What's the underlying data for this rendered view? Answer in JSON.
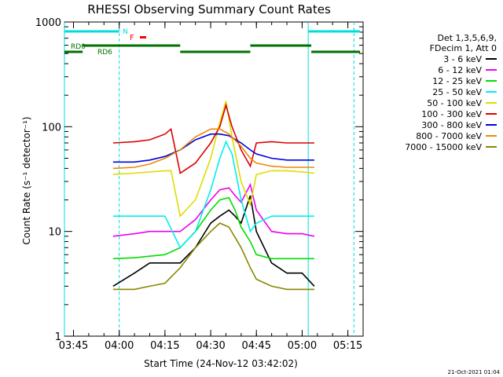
{
  "chart_data": {
    "type": "line",
    "title": "RHESSI Observing Summary Count Rates",
    "xlabel": "Start Time (24-Nov-12 03:42:02)",
    "ylabel": "Count Rate (s⁻¹ detector⁻¹)",
    "ylim": [
      1,
      1000
    ],
    "xlim": [
      "03:42:02",
      "05:20:00"
    ],
    "yscale": "log",
    "x_ticks": [
      "03:45",
      "04:00",
      "04:15",
      "04:30",
      "04:45",
      "05:00",
      "05:15"
    ],
    "y_ticks": [
      "1",
      "10",
      "100",
      "1000"
    ],
    "legend_header": [
      "Det 1,3,5,6,9,",
      "FDecim 1, Att 0"
    ],
    "legend_position": "right",
    "footer_date": "21-Oct-2021 01:04",
    "markers": {
      "N": "N",
      "F": "F",
      "RD0": "RD0",
      "RD6": "RD6"
    },
    "series": [
      {
        "name": "3 - 6 keV",
        "color": "#000000",
        "x": [
          "03:58",
          "04:05",
          "04:10",
          "04:15",
          "04:20",
          "04:25",
          "04:30",
          "04:33",
          "04:36",
          "04:38",
          "04:40",
          "04:43",
          "04:45",
          "04:50",
          "04:55",
          "05:00",
          "05:04"
        ],
        "values": [
          3,
          4,
          5,
          5,
          5,
          7,
          12,
          14,
          16,
          14,
          12,
          22,
          10,
          5,
          4,
          4,
          3
        ]
      },
      {
        "name": "6 - 12 keV",
        "color": "#ee00ee",
        "x": [
          "03:58",
          "04:05",
          "04:10",
          "04:15",
          "04:20",
          "04:25",
          "04:30",
          "04:33",
          "04:36",
          "04:38",
          "04:40",
          "04:43",
          "04:45",
          "04:50",
          "04:55",
          "05:00",
          "05:04"
        ],
        "values": [
          9,
          9.5,
          10,
          10,
          10,
          13,
          20,
          25,
          26,
          22,
          19,
          28,
          16,
          10,
          9.5,
          9.5,
          9
        ]
      },
      {
        "name": "12 - 25 keV",
        "color": "#00dd00",
        "x": [
          "03:58",
          "04:05",
          "04:10",
          "04:15",
          "04:20",
          "04:25",
          "04:30",
          "04:33",
          "04:36",
          "04:38",
          "04:40",
          "04:43",
          "04:45",
          "04:50",
          "04:55",
          "05:00",
          "05:04"
        ],
        "values": [
          5.5,
          5.6,
          5.8,
          6,
          7,
          10,
          16,
          20,
          21,
          16,
          11,
          8,
          6,
          5.5,
          5.5,
          5.5,
          5.5
        ]
      },
      {
        "name": "25 - 50 keV",
        "color": "#00eeee",
        "x": [
          "03:58",
          "04:05",
          "04:10",
          "04:15",
          "04:20",
          "04:25",
          "04:30",
          "04:33",
          "04:35",
          "04:37",
          "04:40",
          "04:43",
          "04:45",
          "04:50",
          "04:55",
          "05:00",
          "05:04"
        ],
        "values": [
          14,
          14,
          14,
          14,
          7,
          10,
          25,
          50,
          72,
          55,
          20,
          10,
          12,
          14,
          14,
          14,
          14
        ]
      },
      {
        "name": "50 - 100 keV",
        "color": "#dddd00",
        "x": [
          "03:58",
          "04:05",
          "04:10",
          "04:15",
          "04:17",
          "04:20",
          "04:25",
          "04:30",
          "04:33",
          "04:35",
          "04:37",
          "04:40",
          "04:43",
          "04:45",
          "04:50",
          "04:55",
          "05:00",
          "05:04"
        ],
        "values": [
          35,
          36,
          37,
          38,
          38,
          14,
          20,
          50,
          110,
          175,
          80,
          30,
          18,
          35,
          38,
          38,
          37,
          36
        ]
      },
      {
        "name": "100 - 300 keV",
        "color": "#dd0000",
        "x": [
          "03:58",
          "04:05",
          "04:10",
          "04:15",
          "04:17",
          "04:20",
          "04:25",
          "04:30",
          "04:33",
          "04:35",
          "04:37",
          "04:40",
          "04:43",
          "04:45",
          "04:50",
          "04:55",
          "05:00",
          "05:04"
        ],
        "values": [
          70,
          72,
          75,
          85,
          95,
          36,
          45,
          70,
          100,
          160,
          100,
          60,
          42,
          70,
          72,
          70,
          70,
          70
        ]
      },
      {
        "name": "300 - 800 keV",
        "color": "#0000dd",
        "x": [
          "03:58",
          "04:05",
          "04:10",
          "04:15",
          "04:20",
          "04:25",
          "04:30",
          "04:33",
          "04:36",
          "04:40",
          "04:43",
          "04:45",
          "04:50",
          "04:55",
          "05:00",
          "05:04"
        ],
        "values": [
          46,
          46,
          48,
          52,
          60,
          75,
          85,
          85,
          82,
          70,
          60,
          55,
          50,
          48,
          48,
          48
        ]
      },
      {
        "name": "800 - 7000 keV",
        "color": "#ee8800",
        "x": [
          "03:58",
          "04:05",
          "04:10",
          "04:15",
          "04:20",
          "04:25",
          "04:30",
          "04:33",
          "04:36",
          "04:40",
          "04:43",
          "04:45",
          "04:50",
          "04:55",
          "05:00",
          "05:04"
        ],
        "values": [
          40,
          41,
          44,
          50,
          60,
          80,
          95,
          95,
          85,
          65,
          50,
          45,
          42,
          41,
          41,
          41
        ]
      },
      {
        "name": "7000 - 15000 keV",
        "color": "#888800",
        "x": [
          "03:58",
          "04:05",
          "04:10",
          "04:15",
          "04:20",
          "04:25",
          "04:30",
          "04:33",
          "04:36",
          "04:40",
          "04:43",
          "04:45",
          "04:50",
          "04:55",
          "05:00",
          "05:04"
        ],
        "values": [
          2.8,
          2.8,
          3,
          3.2,
          4.5,
          7,
          10,
          12,
          11,
          7,
          4.5,
          3.5,
          3,
          2.8,
          2.8,
          2.8
        ]
      }
    ]
  }
}
